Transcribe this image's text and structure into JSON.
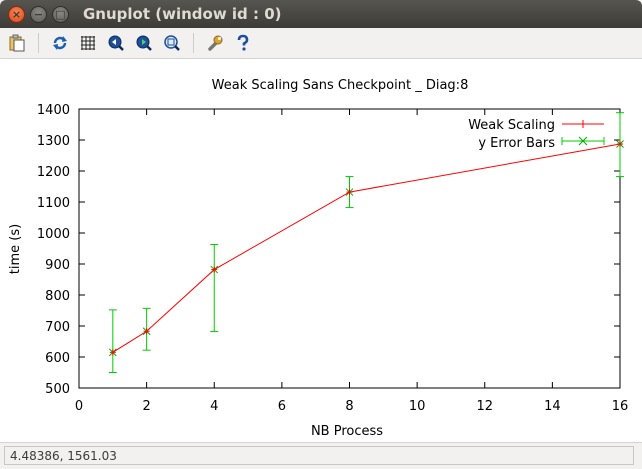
{
  "window": {
    "title": "Gnuplot (window id : 0)",
    "close_glyph": "×",
    "min_glyph": "−",
    "max_glyph": "□"
  },
  "toolbar": {
    "icons": [
      "copy-clipboard-icon",
      "replot-icon",
      "grid-icon",
      "zoom-prev-icon",
      "zoom-next-icon",
      "autoscale-icon",
      "options-wrench-icon",
      "help-icon"
    ]
  },
  "status": {
    "coords": "4.48386,  1561.03"
  },
  "chart_data": {
    "type": "line",
    "title": "Weak Scaling Sans Checkpoint _ Diag:8",
    "xlabel": "NB Process",
    "ylabel": "time (s)",
    "xlim": [
      0,
      16
    ],
    "ylim": [
      500,
      1400
    ],
    "xticks": [
      0,
      2,
      4,
      6,
      8,
      10,
      12,
      14,
      16
    ],
    "yticks": [
      500,
      600,
      700,
      800,
      900,
      1000,
      1100,
      1200,
      1300,
      1400
    ],
    "grid": false,
    "legend_position": "top-right",
    "colors": {
      "line": "#ff0000",
      "errorbars": "#00cc00",
      "axes": "#000000"
    },
    "series": [
      {
        "name": "Weak Scaling",
        "x": [
          1,
          2,
          4,
          8,
          16
        ],
        "y": [
          615,
          683,
          882,
          1132,
          1287
        ]
      },
      {
        "name": "y Error Bars",
        "x": [
          1,
          2,
          4,
          8,
          16
        ],
        "y": [
          615,
          683,
          882,
          1132,
          1287
        ],
        "ylow": [
          550,
          622,
          682,
          1082,
          1182
        ],
        "yhigh": [
          752,
          757,
          963,
          1182,
          1388
        ]
      }
    ]
  }
}
